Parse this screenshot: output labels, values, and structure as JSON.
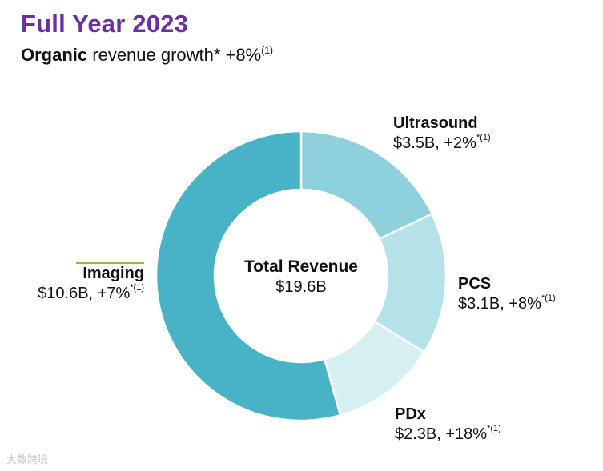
{
  "title": "Full Year 2023",
  "subtitle": {
    "bold": "Organic",
    "rest": " revenue growth* +8%",
    "sup": "(1)"
  },
  "chart_data": {
    "type": "pie",
    "variant": "donut",
    "title": "Full Year 2023",
    "center_title": "Total Revenue",
    "center_value": "$19.6B",
    "total": 19.6,
    "unit": "$B",
    "series": [
      {
        "name": "Ultrasound",
        "value": 3.5,
        "value_label": "$3.5B, +2%",
        "mark": "*",
        "sup": "(1)",
        "color": "#8ed1dd"
      },
      {
        "name": "PCS",
        "value": 3.1,
        "value_label": "$3.1B, +8%",
        "mark": "*",
        "sup": "(1)",
        "color": "#b5e1e8"
      },
      {
        "name": "PDx",
        "value": 2.3,
        "value_label": "$2.3B, +18%",
        "mark": "*",
        "sup": "(1)",
        "color": "#d6eff3"
      },
      {
        "name": "Imaging",
        "value": 10.6,
        "value_label": "$10.6B, +7%",
        "mark": "*",
        "sup": "(1)",
        "color": "#48b3c6"
      }
    ]
  },
  "watermark": "大数跨境"
}
